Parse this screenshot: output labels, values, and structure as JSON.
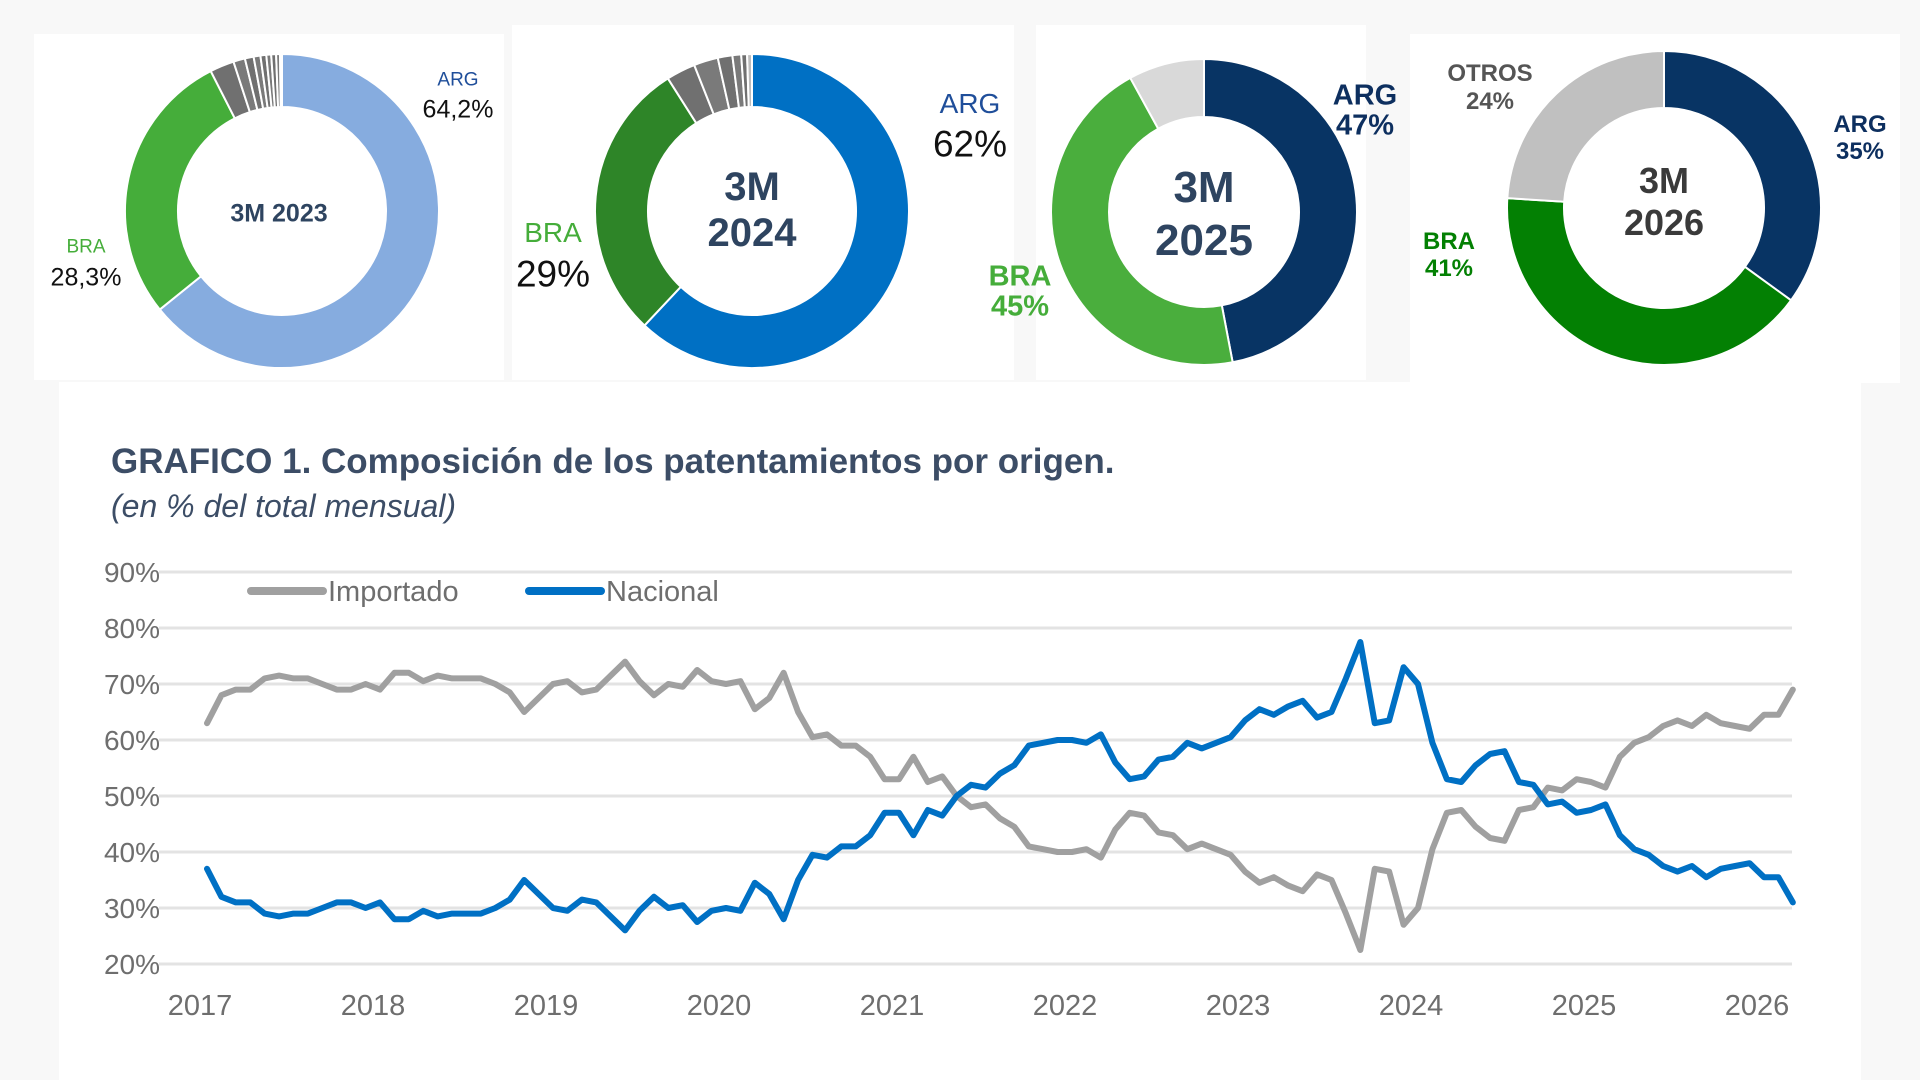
{
  "donuts": [
    {
      "center_label": [
        "3M 2023"
      ],
      "slices": [
        {
          "name": "ARG",
          "value": 64.2,
          "color": "#86acdf",
          "label": "ARG",
          "pct": "64,2%"
        },
        {
          "name": "BRA",
          "value": 28.3,
          "color": "#45ad3a",
          "label": "BRA",
          "pct": "28,3%"
        },
        {
          "name": "otros",
          "value": 2.5,
          "color": "#707070"
        },
        {
          "name": "otros",
          "value": 1.2,
          "color": "#7a7a7a"
        },
        {
          "name": "otros",
          "value": 0.9,
          "color": "#707070"
        },
        {
          "name": "otros",
          "value": 0.7,
          "color": "#7a7a7a"
        },
        {
          "name": "otros",
          "value": 0.6,
          "color": "#707070"
        },
        {
          "name": "otros",
          "value": 0.5,
          "color": "#7a7a7a"
        },
        {
          "name": "otros",
          "value": 0.5,
          "color": "#707070"
        },
        {
          "name": "otros",
          "value": 0.4,
          "color": "#7a7a7a"
        },
        {
          "name": "otros",
          "value": 0.2,
          "color": "#707070"
        }
      ]
    },
    {
      "center_label": [
        "3M",
        "2024"
      ],
      "slices": [
        {
          "name": "ARG",
          "value": 62,
          "color": "#0070c4",
          "label": "ARG",
          "pct": "62%"
        },
        {
          "name": "BRA",
          "value": 29,
          "color": "#2e8528",
          "label": "BRA",
          "pct": "29%"
        },
        {
          "name": "otros",
          "value": 3,
          "color": "#707070"
        },
        {
          "name": "otros",
          "value": 2.5,
          "color": "#7a7a7a"
        },
        {
          "name": "otros",
          "value": 1.5,
          "color": "#707070"
        },
        {
          "name": "otros",
          "value": 0.9,
          "color": "#7a7a7a"
        },
        {
          "name": "otros",
          "value": 0.6,
          "color": "#707070"
        },
        {
          "name": "otros",
          "value": 0.5,
          "color": "#bdbdbd"
        }
      ]
    },
    {
      "center_label": [
        "3M",
        "2025"
      ],
      "slices": [
        {
          "name": "ARG",
          "value": 47,
          "color": "#083464",
          "label": "ARG",
          "pct": "47%"
        },
        {
          "name": "BRA",
          "value": 45,
          "color": "#4aae3d",
          "label": "BRA",
          "pct": "45%"
        },
        {
          "name": "otros",
          "value": 8,
          "color": "#d9d9d9"
        }
      ]
    },
    {
      "center_label": [
        "3M",
        "2026"
      ],
      "slices": [
        {
          "name": "ARG",
          "value": 35,
          "color": "#083464",
          "label": "ARG",
          "pct": "35%"
        },
        {
          "name": "BRA",
          "value": 41,
          "color": "#038003",
          "label": "BRA",
          "pct": "41%"
        },
        {
          "name": "OTROS",
          "value": 24,
          "color": "#c0c0c0",
          "label": "OTROS",
          "pct": "24%"
        }
      ]
    }
  ],
  "chart_data": {
    "type": "line",
    "title": "GRAFICO 1. Composición de los patentamientos por origen.",
    "subtitle": "(en % del total mensual)",
    "x_start": "2017-01",
    "x_frequency": "monthly",
    "x_tick_labels": [
      "2017",
      "2018",
      "2019",
      "2020",
      "2021",
      "2022",
      "2023",
      "2024",
      "2025",
      "2026"
    ],
    "y_tick_labels": [
      "20%",
      "30%",
      "40%",
      "50%",
      "60%",
      "70%",
      "80%",
      "90%"
    ],
    "ylim": [
      20,
      90
    ],
    "grid": "horizontal",
    "legend": "top-left",
    "series": [
      {
        "name": "Importado",
        "color": "#a0a0a0",
        "values": [
          63,
          68,
          69,
          69,
          71,
          71.5,
          71,
          71,
          70,
          69,
          69,
          70,
          69,
          72,
          72,
          70.5,
          71.5,
          71,
          71,
          71,
          70,
          68.5,
          65,
          67.5,
          70,
          70.5,
          68.5,
          69,
          71.5,
          74,
          70.5,
          68,
          70,
          69.5,
          72.5,
          70.5,
          70,
          70.5,
          65.5,
          67.5,
          72,
          65,
          60.5,
          61,
          59,
          59,
          57,
          53,
          53,
          57,
          52.5,
          53.5,
          50,
          48,
          48.5,
          46,
          44.5,
          41,
          40.5,
          40,
          40,
          40.5,
          39,
          44,
          47,
          46.5,
          43.5,
          43,
          40.5,
          41.5,
          40.5,
          39.5,
          36.5,
          34.5,
          35.5,
          34,
          33,
          36,
          35,
          29,
          22.5,
          37,
          36.5,
          27,
          30,
          40.5,
          47,
          47.5,
          44.5,
          42.5,
          42,
          47.5,
          48,
          51.5,
          51,
          53,
          52.5,
          51.5,
          57,
          59.5,
          60.5,
          62.5,
          63.5,
          62.5,
          64.5,
          63,
          62.5,
          62,
          64.5,
          64.5,
          69
        ]
      },
      {
        "name": "Nacional",
        "color": "#0070c4",
        "values": [
          37,
          32,
          31,
          31,
          29,
          28.5,
          29,
          29,
          30,
          31,
          31,
          30,
          31,
          28,
          28,
          29.5,
          28.5,
          29,
          29,
          29,
          30,
          31.5,
          35,
          32.5,
          30,
          29.5,
          31.5,
          31,
          28.5,
          26,
          29.5,
          32,
          30,
          30.5,
          27.5,
          29.5,
          30,
          29.5,
          34.5,
          32.5,
          28,
          35,
          39.5,
          39,
          41,
          41,
          43,
          47,
          47,
          43,
          47.5,
          46.5,
          50,
          52,
          51.5,
          54,
          55.5,
          59,
          59.5,
          60,
          60,
          59.5,
          61,
          56,
          53,
          53.5,
          56.5,
          57,
          59.5,
          58.5,
          59.5,
          60.5,
          63.5,
          65.5,
          64.5,
          66,
          67,
          64,
          65,
          71,
          77.5,
          63,
          63.5,
          73,
          70,
          59.5,
          53,
          52.5,
          55.5,
          57.5,
          58,
          52.5,
          52,
          48.5,
          49,
          47,
          47.5,
          48.5,
          43,
          40.5,
          39.5,
          37.5,
          36.5,
          37.5,
          35.5,
          37,
          37.5,
          38,
          35.5,
          35.5,
          31
        ]
      }
    ]
  }
}
